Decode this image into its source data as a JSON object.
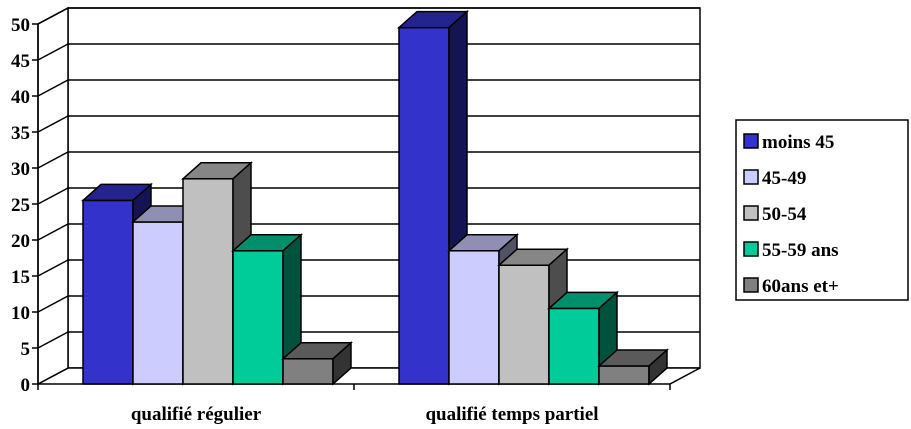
{
  "chart_data": {
    "type": "bar",
    "categories": [
      "qualifié régulier",
      "qualifié temps partiel"
    ],
    "series": [
      {
        "name": "moins 45",
        "values": [
          25.5,
          49.5
        ],
        "color": "#3333cc"
      },
      {
        "name": "45-49",
        "values": [
          22.5,
          18.5
        ],
        "color": "#ccccff"
      },
      {
        "name": "50-54",
        "values": [
          28.5,
          16.5
        ],
        "color": "#c0c0c0"
      },
      {
        "name": "55-59 ans",
        "values": [
          18.5,
          10.5
        ],
        "color": "#00cc99"
      },
      {
        "name": "60ans et+",
        "values": [
          3.5,
          2.5
        ],
        "color": "#808080"
      }
    ],
    "yticks": [
      "0",
      "5",
      "10",
      "15",
      "20",
      "25",
      "30",
      "35",
      "40",
      "45",
      "50"
    ],
    "ylim": [
      0,
      50
    ],
    "grid": true,
    "legend_position": "right",
    "three_d": true
  }
}
